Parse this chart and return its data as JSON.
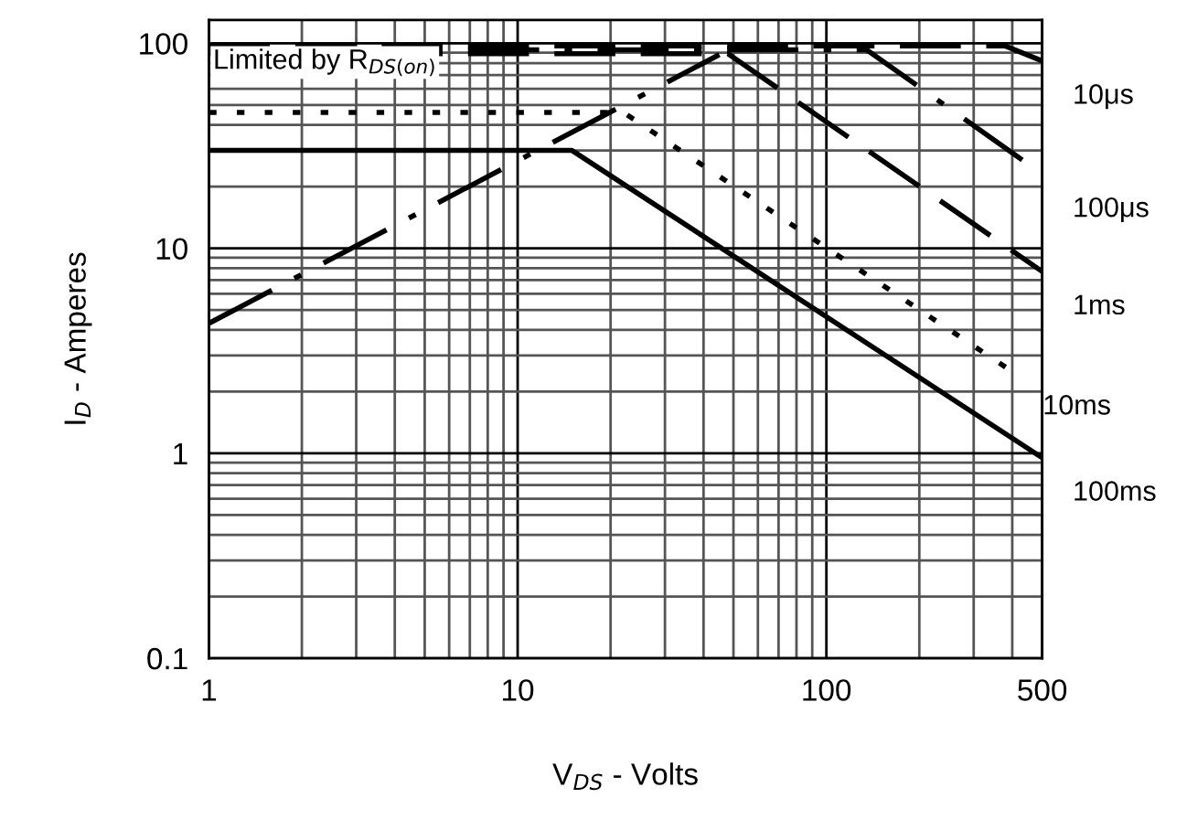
{
  "chart_data": {
    "type": "line",
    "xlabel": "V$_{DS}$ - Volts",
    "ylabel": "I$_{D}$ - Amperes",
    "log": "xy",
    "grid": true,
    "marker": "none",
    "xlim": [
      1,
      500
    ],
    "ylim": [
      0.1,
      130
    ],
    "xticks": [
      1,
      10,
      100,
      500
    ],
    "yticks": [
      0.1,
      1,
      10,
      100
    ],
    "series": [
      {
        "name": "10μs",
        "color": "#000000",
        "line_style": "dashed",
        "x": [
          1,
          380,
          500
        ],
        "values": [
          97,
          97,
          82
        ]
      },
      {
        "name": "100μs",
        "color": "#000000",
        "line_style": "dashdot",
        "x": [
          1,
          135,
          500
        ],
        "values": [
          93,
          93,
          23
        ]
      },
      {
        "name": "1ms",
        "color": "#000000",
        "line_style": "dashed",
        "x": [
          1,
          48,
          500
        ],
        "values": [
          89,
          89,
          7.7
        ]
      },
      {
        "name": "10ms",
        "color": "#000000",
        "line_style": "dotted",
        "x": [
          1,
          22,
          400
        ],
        "values": [
          46,
          46,
          2.5
        ]
      },
      {
        "name": "100ms",
        "color": "#000000",
        "line_style": "solid",
        "x": [
          1,
          15,
          500
        ],
        "values": [
          30,
          30,
          0.95
        ]
      },
      {
        "color": "#000000",
        "line_style": "dashdot",
        "x": [
          1,
          45
        ],
        "values": [
          4.3,
          88
        ]
      }
    ],
    "annotations": [
      "Limited by R$_{DS(on)}$"
    ]
  }
}
